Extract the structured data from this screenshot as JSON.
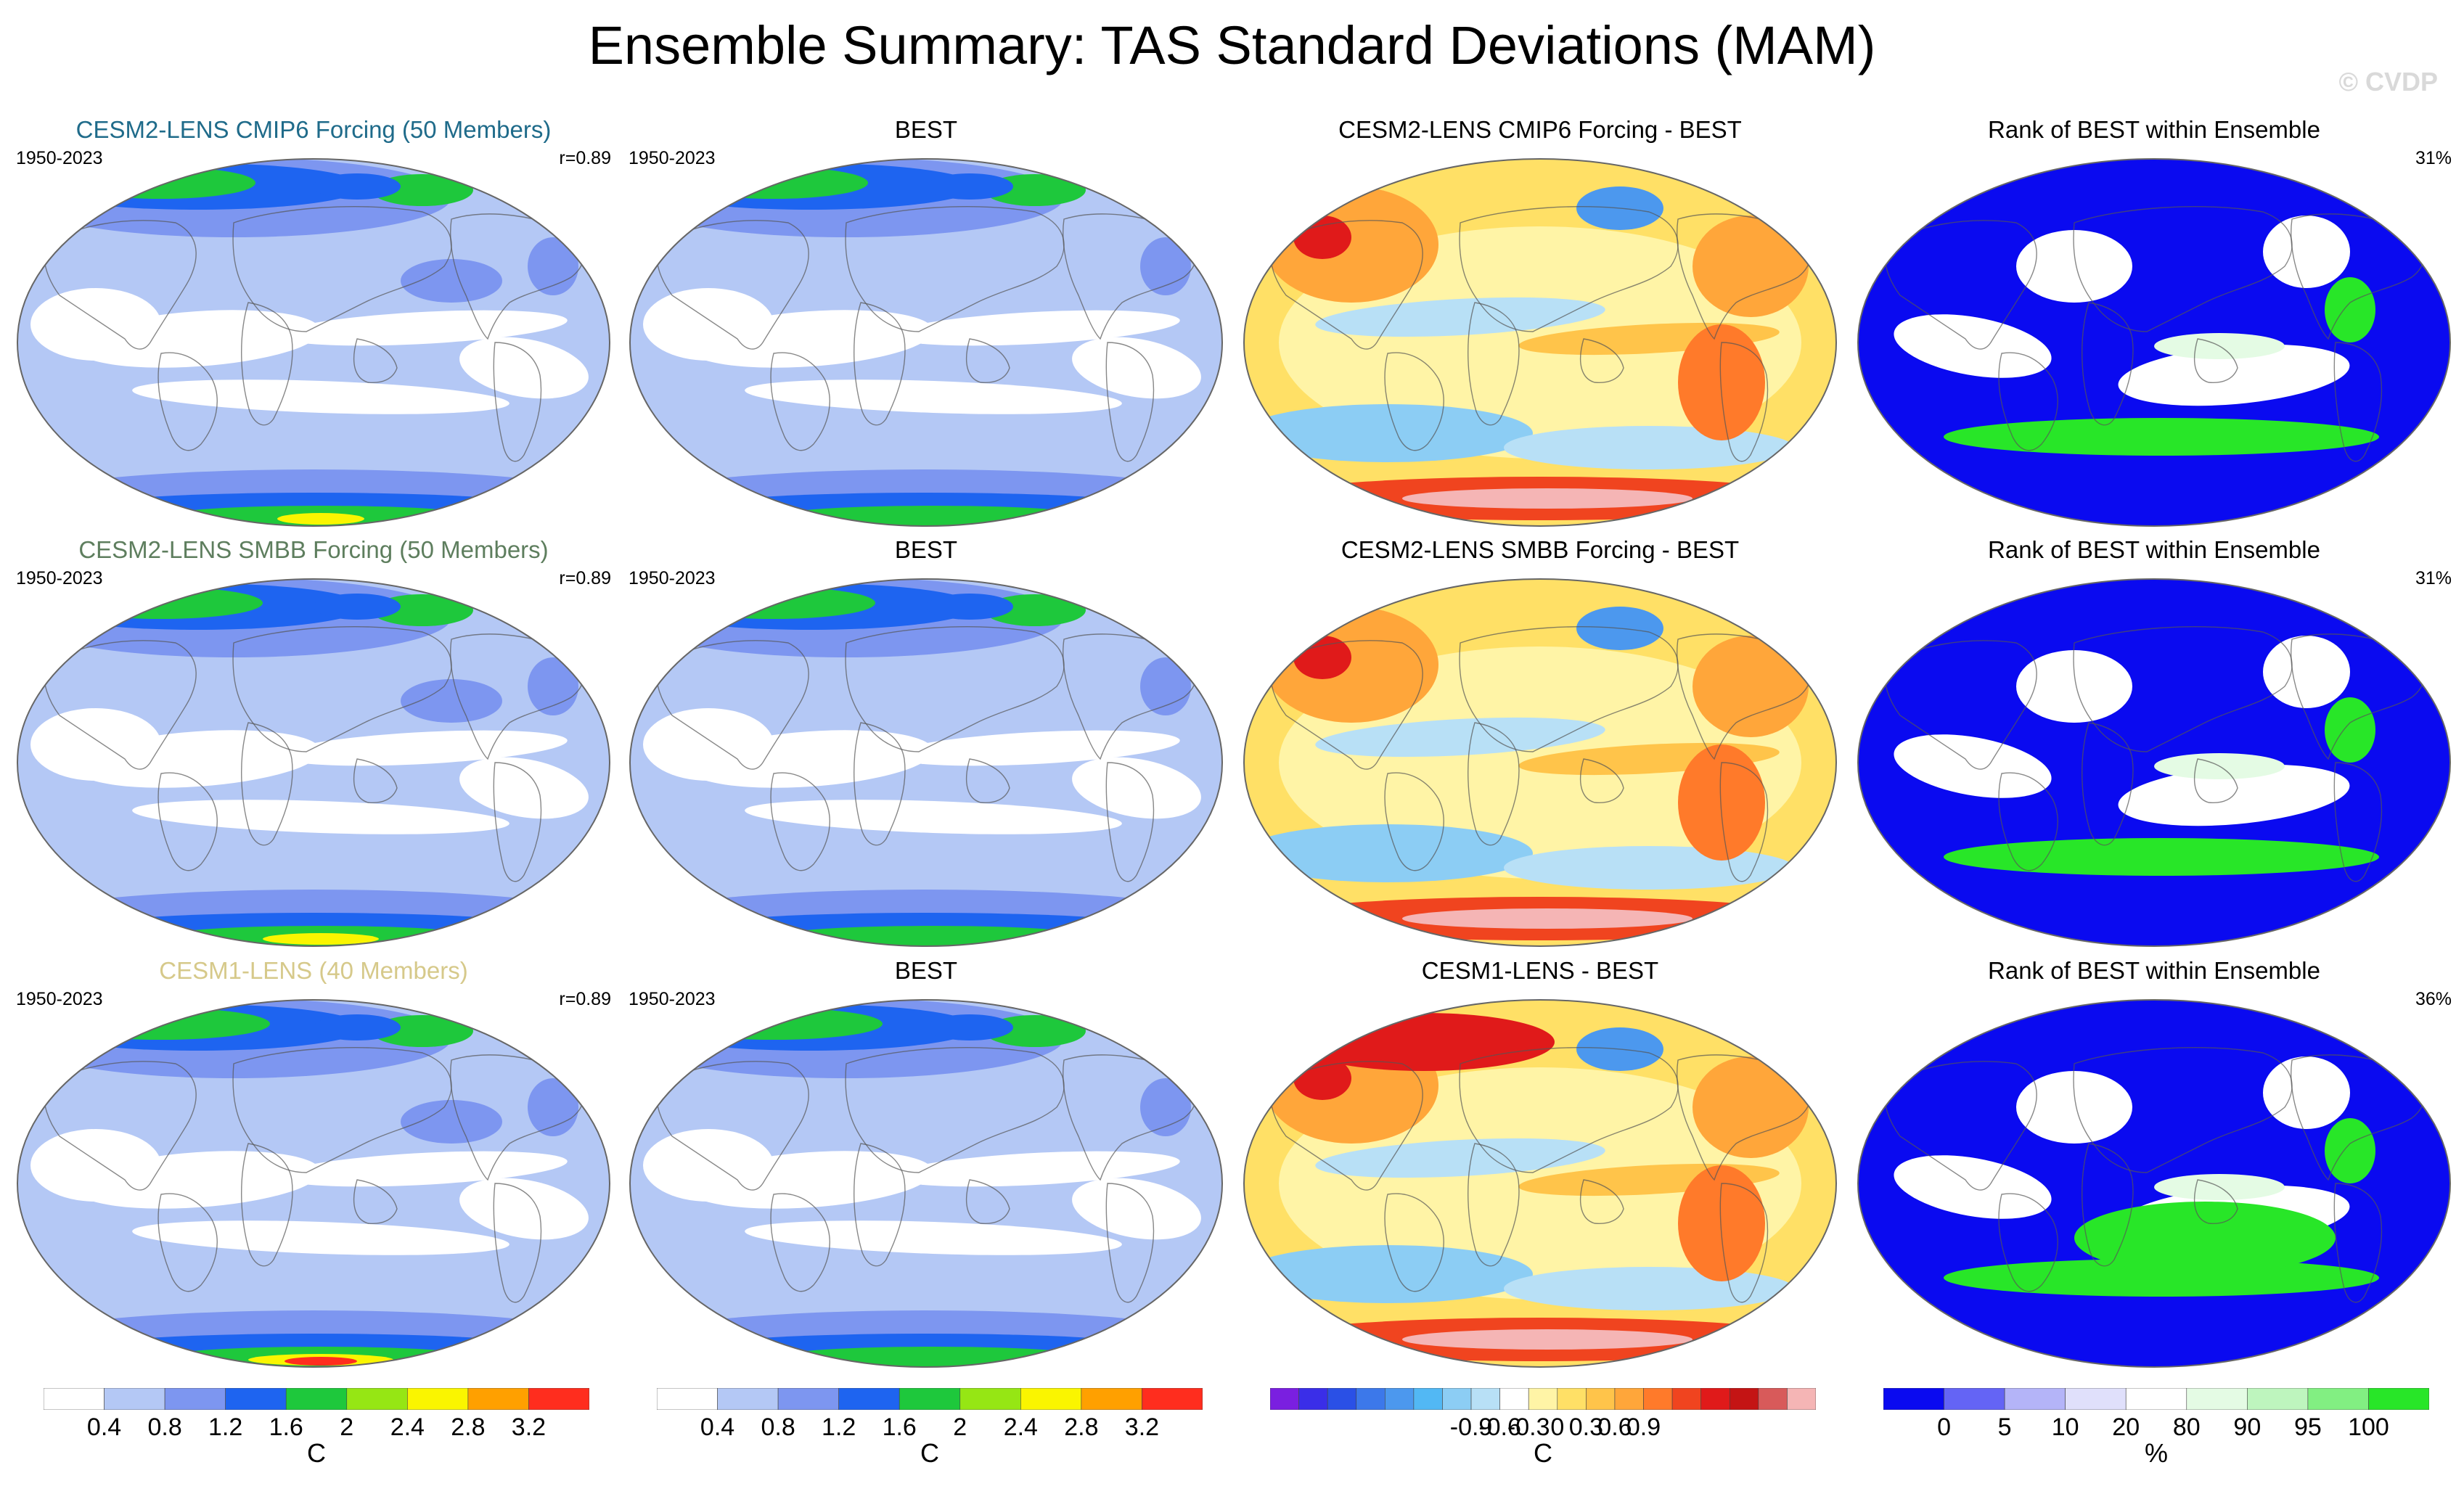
{
  "title": "Ensemble Summary: TAS Standard Deviations (MAM)",
  "copyright": "© CVDP",
  "colors": {
    "ocean_low": "#b4c8f5",
    "lowest": "#ffffff",
    "mid_blue": "#7d96f0",
    "blue": "#1e64f0",
    "green": "#1ec83c",
    "lime": "#96e614",
    "yellow": "#faf500",
    "orange": "#ffa000",
    "red": "#ff2d1e",
    "rank_blue": "#0a0af0",
    "rank_green": "#28e628"
  },
  "chart_data": [
    {
      "type": "map",
      "row": 1,
      "col": 1,
      "title": "CESM2-LENS CMIP6 Forcing (50 Members)",
      "title_color": "#1f6b8a",
      "left_label": "1950-2023",
      "right_label": "r=0.89",
      "kind": "sd",
      "variant": 0
    },
    {
      "type": "map",
      "row": 1,
      "col": 2,
      "title": "BEST",
      "title_color": "#000000",
      "left_label": "1950-2023",
      "right_label": "",
      "kind": "sd_obs",
      "variant": 0
    },
    {
      "type": "map",
      "row": 1,
      "col": 3,
      "title": "CESM2-LENS CMIP6 Forcing - BEST",
      "title_color": "#000000",
      "left_label": "",
      "right_label": "",
      "kind": "diff",
      "variant": 0
    },
    {
      "type": "map",
      "row": 1,
      "col": 4,
      "title": "Rank of BEST within Ensemble",
      "title_color": "#000000",
      "left_label": "",
      "right_label": "31%",
      "kind": "rank",
      "variant": 0
    },
    {
      "type": "map",
      "row": 2,
      "col": 1,
      "title": "CESM2-LENS SMBB Forcing (50 Members)",
      "title_color": "#5e7e5e",
      "left_label": "1950-2023",
      "right_label": "r=0.89",
      "kind": "sd",
      "variant": 1
    },
    {
      "type": "map",
      "row": 2,
      "col": 2,
      "title": "BEST",
      "title_color": "#000000",
      "left_label": "1950-2023",
      "right_label": "",
      "kind": "sd_obs",
      "variant": 1
    },
    {
      "type": "map",
      "row": 2,
      "col": 3,
      "title": "CESM2-LENS SMBB Forcing - BEST",
      "title_color": "#000000",
      "left_label": "",
      "right_label": "",
      "kind": "diff",
      "variant": 1
    },
    {
      "type": "map",
      "row": 2,
      "col": 4,
      "title": "Rank of BEST within Ensemble",
      "title_color": "#000000",
      "left_label": "",
      "right_label": "31%",
      "kind": "rank",
      "variant": 1
    },
    {
      "type": "map",
      "row": 3,
      "col": 1,
      "title": "CESM1-LENS (40 Members)",
      "title_color": "#d6c98a",
      "left_label": "1950-2023",
      "right_label": "r=0.89",
      "kind": "sd",
      "variant": 2
    },
    {
      "type": "map",
      "row": 3,
      "col": 2,
      "title": "BEST",
      "title_color": "#000000",
      "left_label": "1950-2023",
      "right_label": "",
      "kind": "sd_obs",
      "variant": 2
    },
    {
      "type": "map",
      "row": 3,
      "col": 3,
      "title": "CESM1-LENS - BEST",
      "title_color": "#000000",
      "left_label": "",
      "right_label": "",
      "kind": "diff",
      "variant": 2
    },
    {
      "type": "map",
      "row": 3,
      "col": 4,
      "title": "Rank of BEST within Ensemble",
      "title_color": "#000000",
      "left_label": "",
      "right_label": "36%",
      "kind": "rank",
      "variant": 2
    }
  ],
  "colorbars": [
    {
      "name": "sd-colorbar-1",
      "unit": "C",
      "colors": [
        "#ffffff",
        "#b4c8f5",
        "#7d96f0",
        "#1e64f0",
        "#1ec83c",
        "#96e614",
        "#faf500",
        "#ffa000",
        "#ff2d1e"
      ],
      "labels": [
        "0.4",
        "0.8",
        "1.2",
        "1.6",
        "2",
        "2.4",
        "2.8",
        "3.2"
      ]
    },
    {
      "name": "sd-colorbar-2",
      "unit": "C",
      "colors": [
        "#ffffff",
        "#b4c8f5",
        "#7d96f0",
        "#1e64f0",
        "#1ec83c",
        "#96e614",
        "#faf500",
        "#ffa000",
        "#ff2d1e"
      ],
      "labels": [
        "0.4",
        "0.8",
        "1.2",
        "1.6",
        "2",
        "2.4",
        "2.8",
        "3.2"
      ]
    },
    {
      "name": "diff-colorbar",
      "unit": "C",
      "colors": [
        "#7a1fe0",
        "#3a2ee8",
        "#2a50e6",
        "#3c78ea",
        "#4c98ee",
        "#52b8f4",
        "#8ccdf4",
        "#b8e0f6",
        "#ffffff",
        "#fff4a6",
        "#ffe066",
        "#ffc44a",
        "#ffa63a",
        "#ff7a2a",
        "#f0441f",
        "#e01a1a",
        "#c41414",
        "#d85a5a",
        "#f5b5b5"
      ],
      "labels": [
        "-0.9",
        "-0.6",
        "-0.3",
        "0",
        "0.3",
        "0.6",
        "0.9"
      ]
    },
    {
      "name": "rank-colorbar",
      "unit": "%",
      "colors": [
        "#0a0af0",
        "#6464f5",
        "#b4b4f8",
        "#e0e0fb",
        "#ffffff",
        "#e4fbe4",
        "#bef5be",
        "#82ef82",
        "#28e628"
      ],
      "labels": [
        "0",
        "5",
        "10",
        "20",
        "80",
        "90",
        "95",
        "100"
      ]
    }
  ]
}
